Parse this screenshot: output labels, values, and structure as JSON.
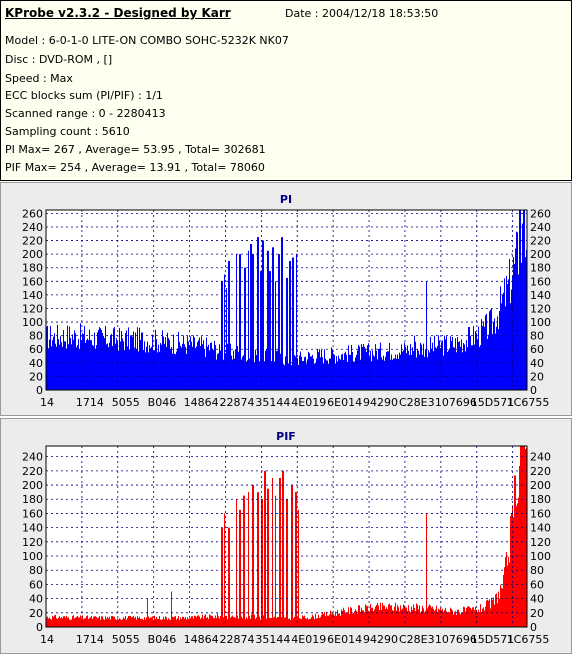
{
  "info": {
    "title": "KProbe v2.3.2 - Designed by Karr",
    "date": "Date : 2004/12/18 18:53:50",
    "lines": [
      "Model : 6-0-1-0 LITE-ON COMBO SOHC-5232K NK07",
      "Disc : DVD-ROM ,  []",
      "Speed : Max",
      "ECC blocks sum (PI/PIF) : 1/1",
      "Scanned range : 0 - 2280413",
      "Sampling count : 5610",
      "PI Max= 267 , Average= 53.95 , Total= 302681",
      "PIF Max= 254 , Average= 13.91 , Total= 78060"
    ]
  },
  "chart_data": [
    {
      "type": "area",
      "title": "PI",
      "color": "#0000ff",
      "ylim": [
        0,
        265
      ],
      "yticks": [
        0,
        20,
        40,
        60,
        80,
        100,
        120,
        140,
        160,
        180,
        200,
        220,
        240,
        260
      ],
      "xtick_labels": [
        "14",
        "1714",
        "5055",
        "B046",
        "14864",
        "22874",
        "35144",
        "4E019",
        "6E014",
        "94290",
        "C28E3",
        "107696",
        "15D571",
        "1C6755"
      ],
      "grid": true,
      "baseline": [
        [
          0,
          78
        ],
        [
          5,
          80
        ],
        [
          10,
          77
        ],
        [
          15,
          75
        ],
        [
          20,
          74
        ],
        [
          25,
          71
        ],
        [
          30,
          67
        ],
        [
          35,
          62
        ],
        [
          36,
          55
        ],
        [
          40,
          55
        ],
        [
          45,
          54
        ],
        [
          50,
          45
        ],
        [
          52,
          46
        ],
        [
          55,
          50
        ],
        [
          60,
          52
        ],
        [
          65,
          55
        ],
        [
          70,
          57
        ],
        [
          75,
          60
        ],
        [
          80,
          64
        ],
        [
          85,
          68
        ],
        [
          90,
          82
        ],
        [
          93,
          100
        ],
        [
          96,
          150
        ],
        [
          98,
          200
        ],
        [
          100,
          238
        ]
      ],
      "spikes": [
        [
          36.5,
          160
        ],
        [
          37,
          170
        ],
        [
          37.4,
          150
        ],
        [
          38,
          190
        ],
        [
          39.5,
          200
        ],
        [
          40.3,
          200
        ],
        [
          41.2,
          180
        ],
        [
          42,
          205
        ],
        [
          42.5,
          215
        ],
        [
          43,
          200
        ],
        [
          44,
          225
        ],
        [
          44.6,
          175
        ],
        [
          45,
          220
        ],
        [
          46,
          205
        ],
        [
          46.5,
          175
        ],
        [
          47.1,
          210
        ],
        [
          47.6,
          160
        ],
        [
          48.3,
          200
        ],
        [
          49,
          225
        ],
        [
          50,
          165
        ],
        [
          50.6,
          190
        ],
        [
          51.2,
          195
        ],
        [
          52,
          200
        ],
        [
          76.5,
          80
        ],
        [
          79,
          160
        ],
        [
          98.5,
          265
        ],
        [
          99.2,
          268
        ]
      ]
    },
    {
      "type": "area",
      "title": "PIF",
      "color": "#ff0000",
      "ylim": [
        0,
        255
      ],
      "yticks": [
        0,
        20,
        40,
        60,
        80,
        100,
        120,
        140,
        160,
        180,
        200,
        220,
        240
      ],
      "xtick_labels": [
        "14",
        "1714",
        "5055",
        "B046",
        "14864",
        "22874",
        "35144",
        "4E019",
        "6E014",
        "94290",
        "C28E3",
        "107696",
        "15D571",
        "1C6755"
      ],
      "grid": true,
      "baseline": [
        [
          0,
          14
        ],
        [
          10,
          13
        ],
        [
          20,
          13
        ],
        [
          30,
          13
        ],
        [
          35,
          15
        ],
        [
          40,
          15
        ],
        [
          50,
          12
        ],
        [
          55,
          14
        ],
        [
          60,
          20
        ],
        [
          65,
          25
        ],
        [
          70,
          28
        ],
        [
          75,
          28
        ],
        [
          80,
          26
        ],
        [
          85,
          22
        ],
        [
          90,
          25
        ],
        [
          93,
          35
        ],
        [
          95,
          60
        ],
        [
          97,
          150
        ],
        [
          98,
          230
        ],
        [
          100,
          255
        ]
      ],
      "spikes": [
        [
          21,
          40
        ],
        [
          26,
          50
        ],
        [
          36.5,
          140
        ],
        [
          37,
          160
        ],
        [
          38,
          140
        ],
        [
          39.5,
          180
        ],
        [
          40.2,
          165
        ],
        [
          41,
          185
        ],
        [
          42,
          190
        ],
        [
          43,
          200
        ],
        [
          44,
          190
        ],
        [
          44.8,
          180
        ],
        [
          45.5,
          220
        ],
        [
          46,
          195
        ],
        [
          47,
          210
        ],
        [
          47.6,
          185
        ],
        [
          48.5,
          210
        ],
        [
          49.2,
          220
        ],
        [
          50,
          180
        ],
        [
          51,
          200
        ],
        [
          51.8,
          190
        ],
        [
          52.4,
          165
        ],
        [
          79,
          160
        ],
        [
          98.6,
          255
        ],
        [
          99.4,
          250
        ]
      ]
    }
  ]
}
